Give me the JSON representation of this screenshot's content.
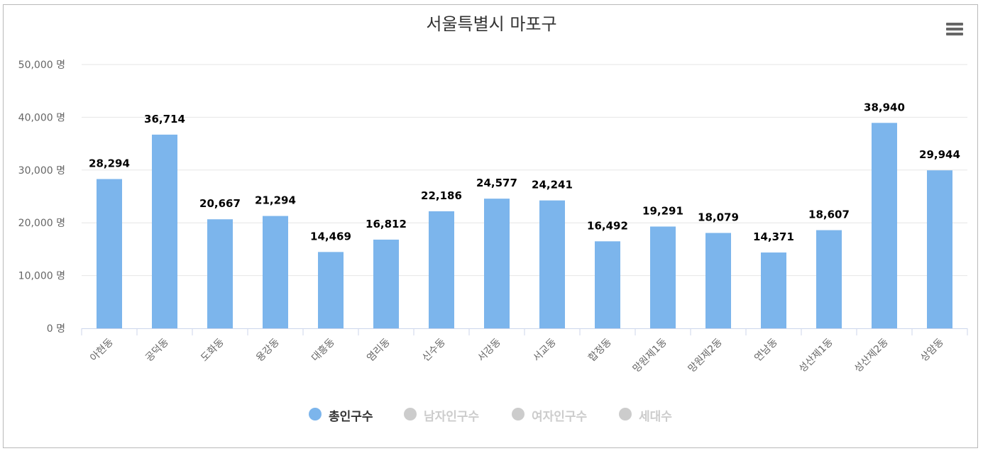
{
  "title": "서울특별시 마포구",
  "menu": {
    "icon": "hamburger-menu-icon"
  },
  "chart_data": {
    "type": "bar",
    "title": "서울특별시 마포구",
    "categories": [
      "아현동",
      "공덕동",
      "도화동",
      "용강동",
      "대흥동",
      "염리동",
      "신수동",
      "서강동",
      "서교동",
      "합정동",
      "망원제1동",
      "망원제2동",
      "연남동",
      "성산제1동",
      "성산제2동",
      "상암동"
    ],
    "series": [
      {
        "name": "총인구수",
        "values": [
          28294,
          36714,
          20667,
          21294,
          14469,
          16812,
          22186,
          24577,
          24241,
          16492,
          19291,
          18079,
          14371,
          18607,
          38940,
          29944
        ],
        "color": "#7cb5ec"
      }
    ],
    "data_labels": [
      "28,294",
      "36,714",
      "20,667",
      "21,294",
      "14,469",
      "16,812",
      "22,186",
      "24,577",
      "24,241",
      "16,492",
      "19,291",
      "18,079",
      "14,371",
      "18,607",
      "38,940",
      "29,944"
    ],
    "ylim": [
      0,
      50000
    ],
    "yticks": [
      0,
      10000,
      20000,
      30000,
      40000,
      50000
    ],
    "ytick_labels": [
      "0 명",
      "10,000 명",
      "20,000 명",
      "30,000 명",
      "40,000 명",
      "50,000 명"
    ],
    "grid": true,
    "legend_position": "bottom-center"
  },
  "legend": [
    {
      "label": "총인구수",
      "color": "#7cb5ec",
      "active": true
    },
    {
      "label": "남자인구수",
      "color": "#cccccc",
      "active": false
    },
    {
      "label": "여자인구수",
      "color": "#cccccc",
      "active": false
    },
    {
      "label": "세대수",
      "color": "#cccccc",
      "active": false
    }
  ]
}
